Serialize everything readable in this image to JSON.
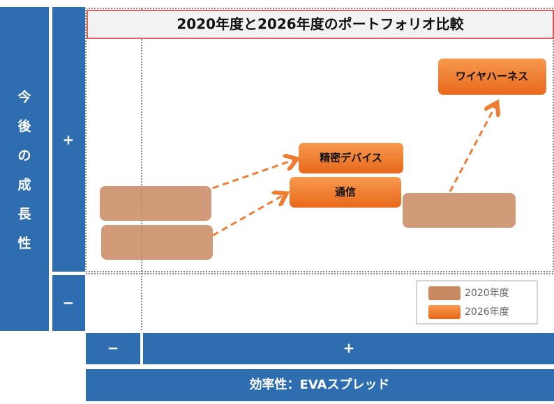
{
  "title": "2020年度と2026年度のポートフォリオ比較",
  "y_axis": {
    "label_chars": [
      "今",
      "後",
      "の",
      "成",
      "長",
      "性"
    ],
    "plus": "+",
    "minus": "−"
  },
  "x_axis": {
    "label": "効率性：EVAスプレッド",
    "plus": "+",
    "minus": "−"
  },
  "boxes_2026": [
    "精密デバイス",
    "通信",
    "ワイヤハーネス"
  ],
  "legend": [
    "2020年度",
    "2026年度"
  ]
}
